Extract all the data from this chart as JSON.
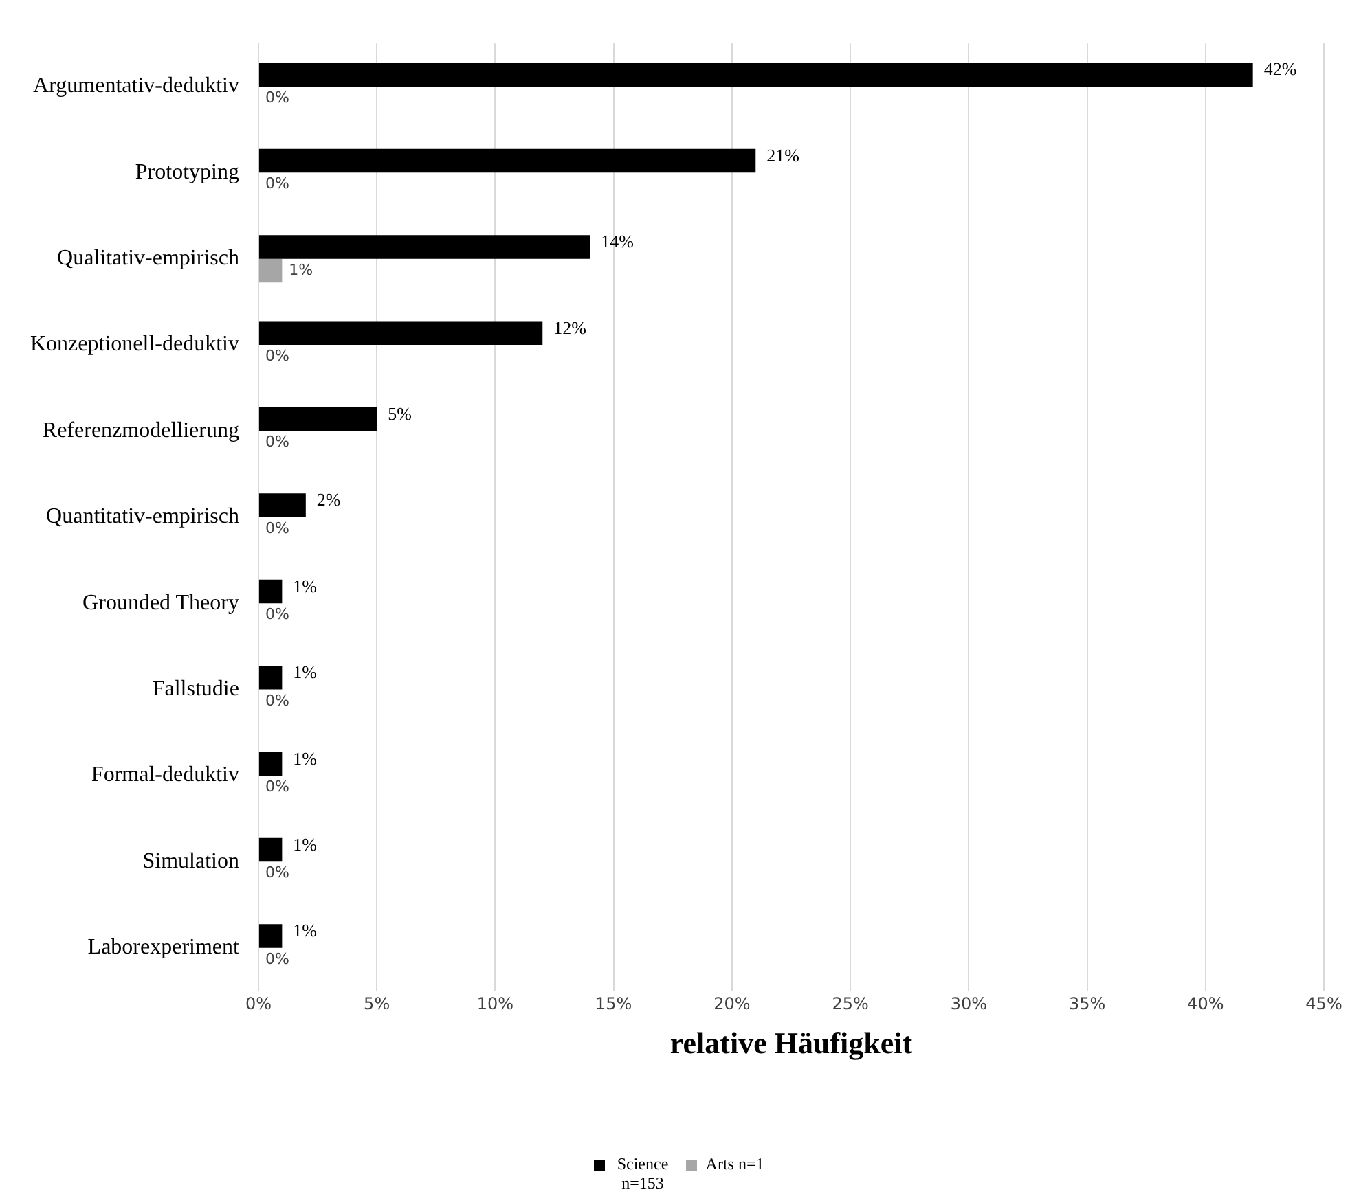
{
  "chart_data": {
    "type": "bar",
    "orientation": "horizontal",
    "xlabel": "relative Häufigkeit",
    "categories": [
      "Argumentativ-deduktiv",
      "Prototyping",
      "Qualitativ-empirisch",
      "Konzeptionell-deduktiv",
      "Referenzmodellierung",
      "Quantitativ-empirisch",
      "Grounded Theory",
      "Fallstudie",
      "Formal-deduktiv",
      "Simulation",
      "Laborexperiment"
    ],
    "series": [
      {
        "name": "Science n=153",
        "color": "#000000",
        "values": [
          42,
          21,
          14,
          12,
          5,
          2,
          1,
          1,
          1,
          1,
          1
        ],
        "value_labels": [
          "42%",
          "21%",
          "14%",
          "12%",
          "5%",
          "2%",
          "1%",
          "1%",
          "1%",
          "1%",
          "1%"
        ]
      },
      {
        "name": "Arts n=1",
        "color": "#a6a6a6",
        "values": [
          0,
          0,
          1,
          0,
          0,
          0,
          0,
          0,
          0,
          0,
          0
        ],
        "value_labels": [
          "0%",
          "0%",
          "1%",
          "0%",
          "0%",
          "0%",
          "0%",
          "0%",
          "0%",
          "0%",
          "0%"
        ]
      }
    ],
    "xlim": [
      0,
      45
    ],
    "xticks": [
      {
        "value": 0,
        "label": "0%"
      },
      {
        "value": 5,
        "label": "5%"
      },
      {
        "value": 10,
        "label": "10%"
      },
      {
        "value": 15,
        "label": "15%"
      },
      {
        "value": 20,
        "label": "20%"
      },
      {
        "value": 25,
        "label": "25%"
      },
      {
        "value": 30,
        "label": "30%"
      },
      {
        "value": 35,
        "label": "35%"
      },
      {
        "value": 40,
        "label": "40%"
      },
      {
        "value": 45,
        "label": "45%"
      }
    ],
    "grid": "x",
    "legend": "bottom"
  }
}
